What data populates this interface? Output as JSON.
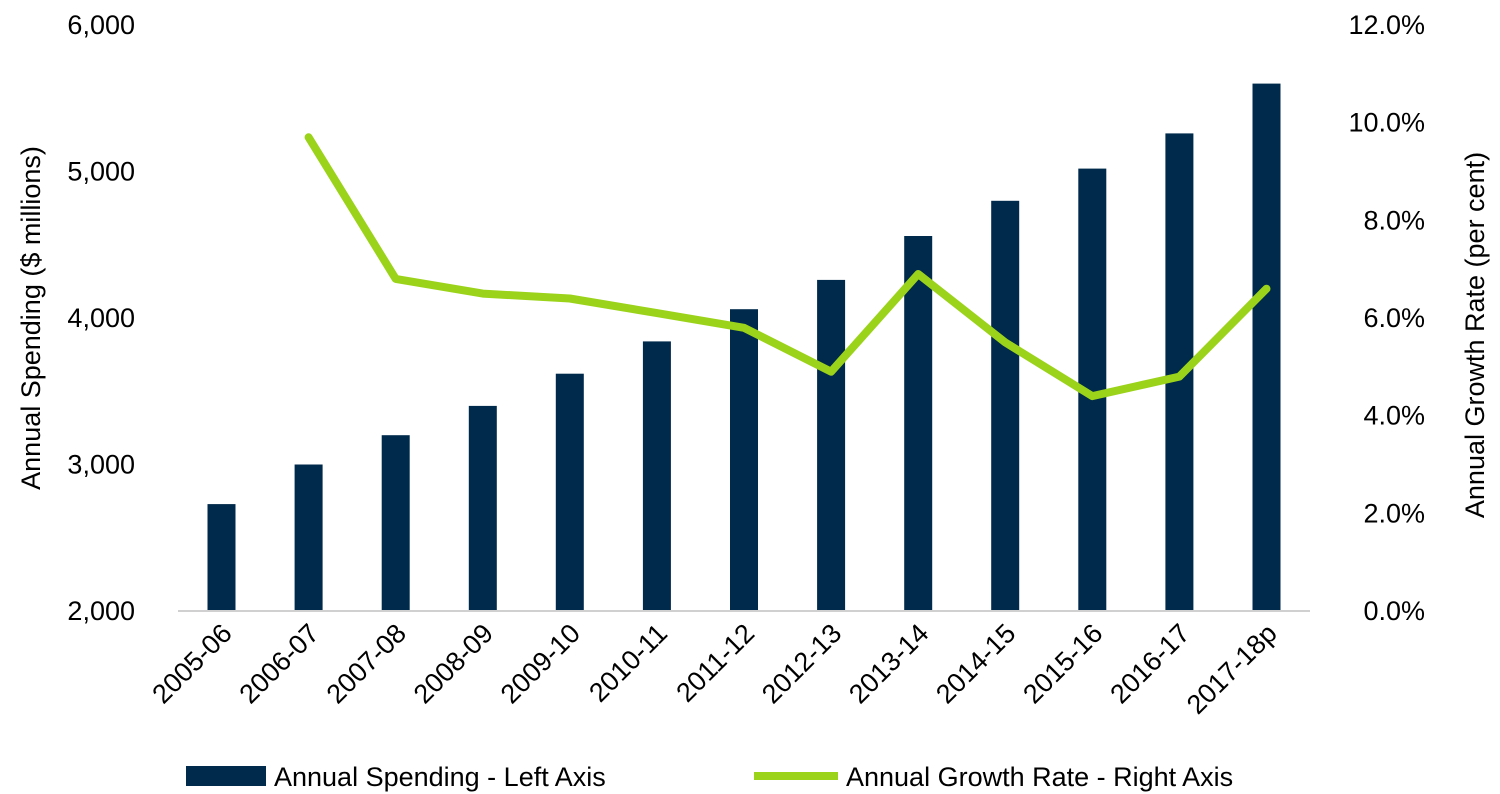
{
  "chart_data": {
    "type": "bar",
    "categories": [
      "2005-06",
      "2006-07",
      "2007-08",
      "2008-09",
      "2009-10",
      "2010-11",
      "2011-12",
      "2012-13",
      "2013-14",
      "2014-15",
      "2015-16",
      "2016-17",
      "2017-18p"
    ],
    "series": [
      {
        "name": "Annual Spending - Left Axis",
        "type": "bar",
        "axis": "left",
        "color": "#002a4b",
        "values": [
          2730,
          3000,
          3200,
          3400,
          3620,
          3840,
          4060,
          4260,
          4560,
          4800,
          5020,
          5260,
          5600
        ]
      },
      {
        "name": "Annual Growth Rate - Right Axis",
        "type": "line",
        "axis": "right",
        "color": "#9bd31a",
        "values": [
          null,
          9.7,
          6.8,
          6.5,
          6.4,
          6.1,
          5.8,
          4.9,
          6.9,
          5.5,
          4.4,
          4.8,
          6.6
        ]
      }
    ],
    "ylabel": "Annual Spending ($ millions)",
    "y2label": "Annual Growth Rate (per cent)",
    "ylim": [
      2000,
      6000
    ],
    "y2lim": [
      0,
      12
    ],
    "yticks": [
      "2,000",
      "3,000",
      "4,000",
      "5,000",
      "6,000"
    ],
    "y2ticks": [
      "0.0%",
      "2.0%",
      "4.0%",
      "6.0%",
      "8.0%",
      "10.0%",
      "12.0%"
    ],
    "grid": false,
    "legend_position": "bottom"
  }
}
